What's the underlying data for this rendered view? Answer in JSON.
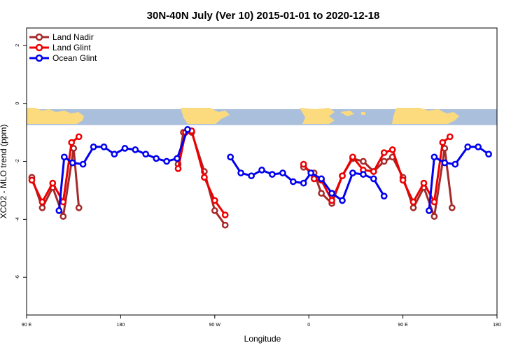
{
  "chart_data": {
    "type": "line",
    "title": "30N-40N July (Ver 10)   2015-01-01 to 2020-12-18",
    "xlabel": "Longitude",
    "ylabel": "XCO2 - MLO trend (ppm)",
    "xlim": [
      90,
      540
    ],
    "ylim": [
      -7.3,
      2.6
    ],
    "x_ticks": [
      {
        "value": 90,
        "label": "90 E"
      },
      {
        "value": 180,
        "label": "180"
      },
      {
        "value": 270,
        "label": "90 W"
      },
      {
        "value": 360,
        "label": "0"
      },
      {
        "value": 450,
        "label": "90 E"
      },
      {
        "value": 540,
        "label": "180"
      }
    ],
    "y_ticks": [
      {
        "value": 2,
        "label": "2"
      },
      {
        "value": 0,
        "label": "0"
      },
      {
        "value": -2,
        "label": "-2"
      },
      {
        "value": -4,
        "label": "-4"
      },
      {
        "value": -6,
        "label": "-6"
      }
    ],
    "grid": false,
    "legend_position": "top-left",
    "map_strip": {
      "y_top": -0.2,
      "y_bottom": -0.75,
      "ocean_color": "#a9bfdc",
      "land_color": "#fcda7e"
    },
    "series": [
      {
        "name": "Land Nadir",
        "color": "#a52a2a",
        "segments": [
          [
            [
              95,
              -2.55
            ],
            [
              105,
              -3.6
            ],
            [
              115,
              -2.9
            ],
            [
              125,
              -3.9
            ],
            [
              135,
              -1.55
            ],
            [
              140,
              -3.6
            ]
          ],
          [
            [
              235,
              -2.1
            ],
            [
              240,
              -1.0
            ],
            [
              248,
              -1.0
            ],
            [
              260,
              -2.35
            ],
            [
              270,
              -3.7
            ],
            [
              280,
              -4.2
            ]
          ],
          [
            [
              355,
              -2.2
            ],
            [
              365,
              -2.4
            ],
            [
              372,
              -3.1
            ],
            [
              382,
              -3.45
            ],
            [
              392,
              -2.5
            ],
            [
              402,
              -1.9
            ],
            [
              412,
              -2.0
            ],
            [
              422,
              -2.35
            ],
            [
              432,
              -2.0
            ],
            [
              440,
              -1.85
            ],
            [
              450,
              -2.55
            ],
            [
              460,
              -3.6
            ],
            [
              470,
              -2.9
            ],
            [
              480,
              -3.9
            ],
            [
              490,
              -1.55
            ],
            [
              497,
              -3.6
            ]
          ]
        ]
      },
      {
        "name": "Land Glint",
        "color": "#ee0000",
        "segments": [
          [
            [
              95,
              -2.65
            ],
            [
              105,
              -3.4
            ],
            [
              115,
              -2.75
            ],
            [
              125,
              -3.4
            ],
            [
              133,
              -1.35
            ],
            [
              140,
              -1.15
            ]
          ],
          [
            [
              235,
              -2.25
            ],
            [
              242,
              -1.0
            ],
            [
              248,
              -0.95
            ],
            [
              260,
              -2.55
            ],
            [
              270,
              -3.35
            ],
            [
              280,
              -3.85
            ]
          ],
          [
            [
              355,
              -2.1
            ],
            [
              365,
              -2.6
            ],
            [
              372,
              -2.65
            ],
            [
              382,
              -3.35
            ],
            [
              392,
              -2.5
            ],
            [
              402,
              -1.85
            ],
            [
              412,
              -2.3
            ],
            [
              422,
              -2.35
            ],
            [
              432,
              -1.7
            ],
            [
              440,
              -1.6
            ],
            [
              450,
              -2.65
            ],
            [
              460,
              -3.4
            ],
            [
              470,
              -2.75
            ],
            [
              480,
              -3.4
            ],
            [
              488,
              -1.35
            ],
            [
              495,
              -1.15
            ]
          ]
        ]
      },
      {
        "name": "Ocean Glint",
        "color": "#0000ee",
        "segments": [
          [
            [
              121,
              -3.7
            ],
            [
              126,
              -1.85
            ],
            [
              134,
              -2.05
            ],
            [
              144,
              -2.1
            ],
            [
              154,
              -1.5
            ],
            [
              164,
              -1.5
            ],
            [
              174,
              -1.75
            ],
            [
              184,
              -1.55
            ],
            [
              194,
              -1.6
            ],
            [
              204,
              -1.75
            ],
            [
              214,
              -1.9
            ],
            [
              224,
              -2.0
            ],
            [
              234,
              -1.9
            ],
            [
              244,
              -0.9
            ]
          ],
          [
            [
              285,
              -1.85
            ],
            [
              295,
              -2.4
            ],
            [
              305,
              -2.5
            ],
            [
              315,
              -2.3
            ],
            [
              325,
              -2.45
            ],
            [
              335,
              -2.4
            ],
            [
              345,
              -2.7
            ],
            [
              355,
              -2.75
            ],
            [
              362,
              -2.4
            ],
            [
              372,
              -2.6
            ],
            [
              382,
              -3.1
            ],
            [
              392,
              -3.35
            ],
            [
              402,
              -2.4
            ],
            [
              412,
              -2.45
            ],
            [
              422,
              -2.6
            ],
            [
              432,
              -3.2
            ]
          ],
          [
            [
              475,
              -3.7
            ],
            [
              480,
              -1.85
            ],
            [
              490,
              -2.05
            ],
            [
              500,
              -2.1
            ],
            [
              512,
              -1.5
            ],
            [
              522,
              -1.5
            ],
            [
              532,
              -1.75
            ]
          ]
        ]
      }
    ]
  }
}
